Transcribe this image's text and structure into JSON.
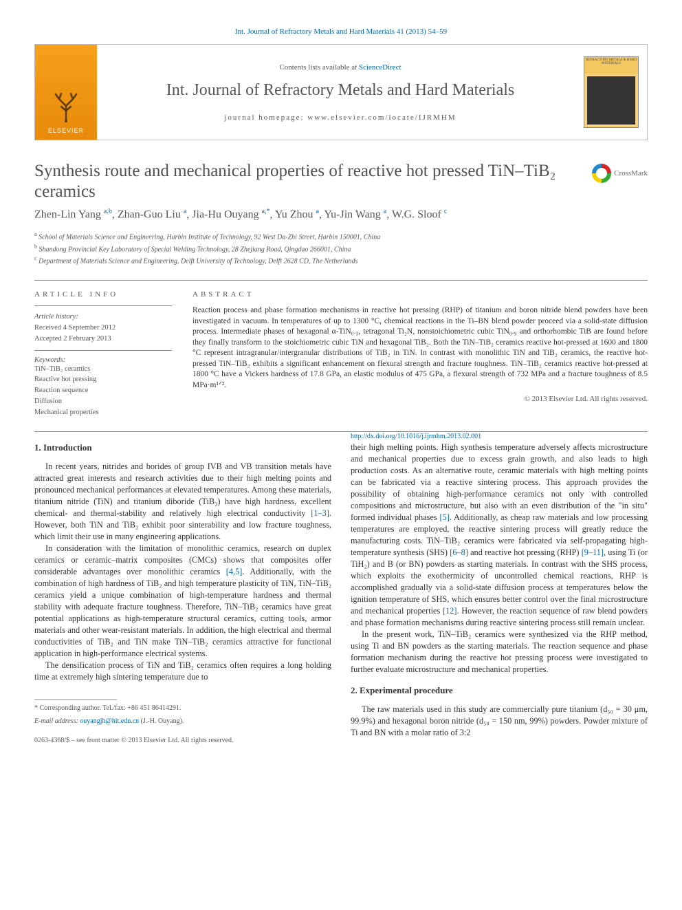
{
  "topLink": {
    "text": "Int. Journal of Refractory Metals and Hard Materials 41 (2013) 54–59"
  },
  "header": {
    "elsevierLabel": "ELSEVIER",
    "contentsPrefix": "Contents lists available at ",
    "contentsLink": "ScienceDirect",
    "journalName": "Int. Journal of Refractory Metals and Hard Materials",
    "homepagePrefix": "journal homepage: ",
    "homepageUrl": "www.elsevier.com/locate/IJRMHM",
    "coverTopText": "REFRACTORY METALS & HARD MATERIALS"
  },
  "crossmark": {
    "label": "CrossMark"
  },
  "title": "Synthesis route and mechanical properties of reactive hot pressed TiN–TiB₂ ceramics",
  "authorsHtml": "Zhen-Lin Yang <sup class='sup'>a,b</sup>, Zhan-Guo Liu <sup class='sup'>a</sup>, Jia-Hu Ouyang <sup class='sup'>a,</sup><sup class='sup sup-star'>*</sup>, Yu Zhou <sup class='sup'>a</sup>, Yu-Jin Wang <sup class='sup'>a</sup>, W.G. Sloof <sup class='sup'>c</sup>",
  "affiliations": [
    {
      "sup": "a",
      "text": "School of Materials Science and Engineering, Harbin Institute of Technology, 92 West Da-Zhi Street, Harbin 150001, China"
    },
    {
      "sup": "b",
      "text": "Shandong Provincial Key Laboratory of Special Welding Technology, 28 Zhejiang Road, Qingdao 266001, China"
    },
    {
      "sup": "c",
      "text": "Department of Materials Science and Engineering, Delft University of Technology, Delft 2628 CD, The Netherlands"
    }
  ],
  "articleInfo": {
    "heading": "ARTICLE INFO",
    "historyHeading": "Article history:",
    "received": "Received 4 September 2012",
    "accepted": "Accepted 2 February 2013",
    "keywordsHeading": "Keywords:",
    "keywords": [
      "TiN–TiB₂ ceramics",
      "Reactive hot pressing",
      "Reaction sequence",
      "Diffusion",
      "Mechanical properties"
    ]
  },
  "abstract": {
    "heading": "ABSTRACT",
    "text": "Reaction process and phase formation mechanisms in reactive hot pressing (RHP) of titanium and boron nitride blend powders have been investigated in vacuum. In temperatures of up to 1300 °C, chemical reactions in the Ti–BN blend powder proceed via a solid-state diffusion process. Intermediate phases of hexagonal α-TiN₀.₃, tetragonal Ti₂N, nonstoichiometric cubic TiN₀.₉ and orthorhombic TiB are found before they finally transform to the stoichiometric cubic TiN and hexagonal TiB₂. Both the TiN–TiB₂ ceramics reactive hot-pressed at 1600 and 1800 °C represent intragranular/intergranular distributions of TiB₂ in TiN. In contrast with monolithic TiN and TiB₂ ceramics, the reactive hot-pressed TiN–TiB₂ exhibits a significant enhancement on flexural strength and fracture toughness. TiN–TiB₂ ceramics reactive hot-pressed at 1800 °C have a Vickers hardness of 17.8 GPa, an elastic modulus of 475 GPa, a flexural strength of 732 MPa and a fracture toughness of 8.5 MPa·m¹ᐟ².",
    "copyright": "© 2013 Elsevier Ltd. All rights reserved."
  },
  "sections": {
    "introHeading": "1. Introduction",
    "expHeading": "2. Experimental procedure"
  },
  "body": {
    "p1": "In recent years, nitrides and borides of group IVB and VB transition metals have attracted great interests and research activities due to their high melting points and pronounced mechanical performances at elevated temperatures. Among these materials, titanium nitride (TiN) and titanium diboride (TiB₂) have high hardness, excellent chemical- and thermal-stability and relatively high electrical conductivity ",
    "p1ref": "[1–3]",
    "p1b": ". However, both TiN and TiB₂ exhibit poor sinterability and low fracture toughness, which limit their use in many engineering applications.",
    "p2": "In consideration with the limitation of monolithic ceramics, research on duplex ceramics or ceramic–matrix composites (CMCs) shows that composites offer considerable advantages over monolithic ceramics ",
    "p2ref": "[4,5]",
    "p2b": ". Additionally, with the combination of high hardness of TiB₂ and high temperature plasticity of TiN, TiN–TiB₂ ceramics yield a unique combination of high-temperature hardness and thermal stability with adequate fracture toughness. Therefore, TiN–TiB₂ ceramics have great potential applications as high-temperature structural ceramics, cutting tools, armor materials and other wear-resistant materials. In addition, the high electrical and thermal conductivities of TiB₂ and TiN make TiN–TiB₂ ceramics attractive for functional application in high-performance electrical systems.",
    "p3": "The densification process of TiN and TiB₂ ceramics often requires a long holding time at extremely high sintering temperature due to",
    "p4": "their high melting points. High synthesis temperature adversely affects microstructure and mechanical properties due to excess grain growth, and also leads to high production costs. As an alternative route, ceramic materials with high melting points can be fabricated via a reactive sintering process. This approach provides the possibility of obtaining high-performance ceramics not only with controlled compositions and microstructure, but also with an even distribution of the \"in situ\" formed individual phases ",
    "p4ref": "[5]",
    "p4b": ". Additionally, as cheap raw materials and low processing temperatures are employed, the reactive sintering process will greatly reduce the manufacturing costs. TiN–TiB₂ ceramics were fabricated via self-propagating high-temperature synthesis (SHS) ",
    "p4ref2": "[6–8]",
    "p4c": " and reactive hot pressing (RHP) ",
    "p4ref3": "[9–11]",
    "p4d": ", using Ti (or TiH₂) and B (or BN) powders as starting materials. In contrast with the SHS process, which exploits the exothermicity of uncontrolled chemical reactions, RHP is accomplished gradually via a solid-state diffusion process at temperatures below the ignition temperature of SHS, which ensures better control over the final microstructure and mechanical properties ",
    "p4ref4": "[12]",
    "p4e": ". However, the reaction sequence of raw blend powders and phase formation mechanisms during reactive sintering process still remain unclear.",
    "p5": "In the present work, TiN–TiB₂ ceramics were synthesized via the RHP method, using Ti and BN powders as the starting materials. The reaction sequence and phase formation mechanism during the reactive hot pressing process were investigated to further evaluate microstructure and mechanical properties.",
    "p6": "The raw materials used in this study are commercially pure titanium (d₅₀ = 30 μm, 99.9%) and hexagonal boron nitride (d₅₀ = 150 nm, 99%) powders. Powder mixture of Ti and BN with a molar ratio of 3:2"
  },
  "footer": {
    "corrLabel": "* Corresponding author. Tel./fax: +86 451 86414291.",
    "emailLabel": "E-mail address: ",
    "email": "ouyangjh@hit.edu.cn",
    "emailSuffix": " (J.-H. Ouyang).",
    "issn": "0263-4368/$ – see front matter © 2013 Elsevier Ltd. All rights reserved.",
    "doi": "http://dx.doi.org/10.1016/j.ijrmhm.2013.02.001"
  },
  "colors": {
    "linkColor": "#0066aa",
    "textColor": "#333333",
    "mutedText": "#555555",
    "borderColor": "#888888",
    "elsevierOrange": "#f7a01a",
    "background": "#ffffff"
  },
  "layout": {
    "pageWidth": 992,
    "pageHeight": 1323,
    "columnCount": 2,
    "columnGap": 28
  }
}
